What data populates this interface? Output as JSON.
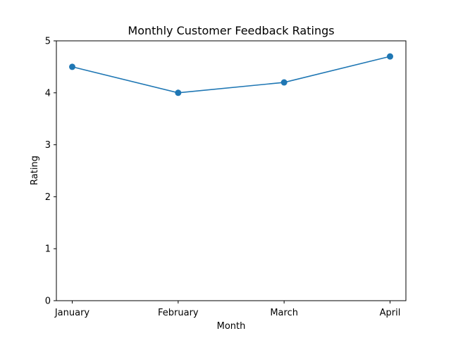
{
  "chart_data": {
    "type": "line",
    "title": "Monthly Customer Feedback Ratings",
    "xlabel": "Month",
    "ylabel": "Rating",
    "categories": [
      "January",
      "February",
      "March",
      "April"
    ],
    "series": [
      {
        "values": [
          4.5,
          4.0,
          4.2,
          4.7
        ],
        "color": "#1f77b4",
        "marker": "circle"
      }
    ],
    "ylim": [
      0,
      5
    ],
    "yticks": [
      "0",
      "1",
      "2",
      "3",
      "4",
      "5"
    ],
    "grid": false,
    "legend": "none"
  }
}
